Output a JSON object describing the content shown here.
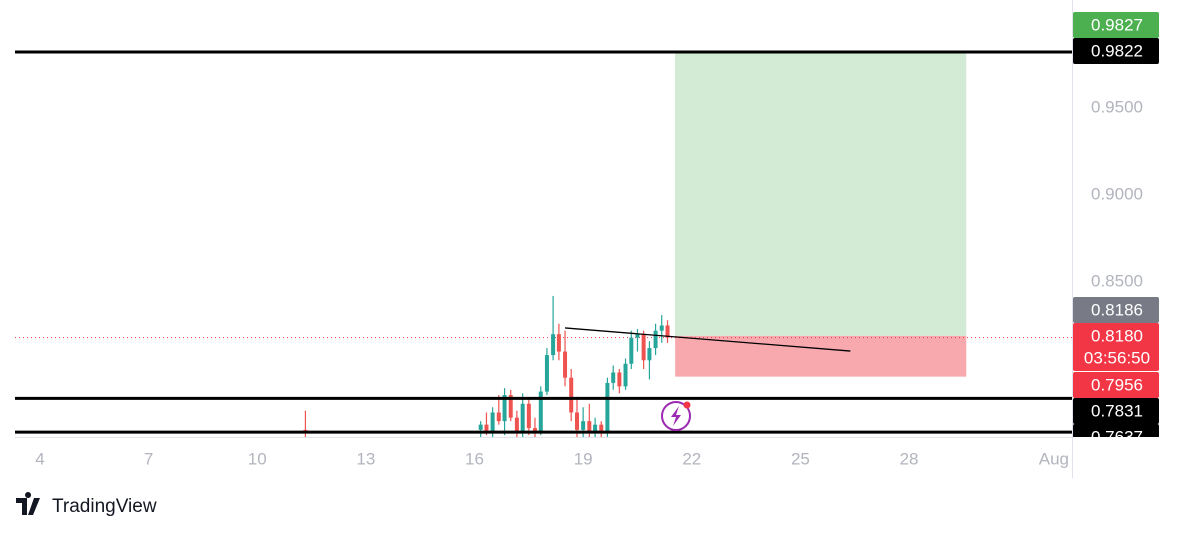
{
  "chart_data": {
    "type": "candlestick",
    "xlim": [
      3.31,
      32.5
    ],
    "xticks": [
      4,
      7,
      10,
      13,
      16,
      19,
      22,
      25,
      28,
      {
        "value": 32,
        "label": "Aug"
      }
    ],
    "ylim": [
      0.7609,
      1.0121
    ],
    "yticks": [
      {
        "value": 0.85,
        "label": "0.8500"
      },
      {
        "value": 0.9,
        "label": "0.9000"
      },
      {
        "value": 0.95,
        "label": "0.9500"
      }
    ],
    "up_color": "#26a69a",
    "down_color": "#ef5350",
    "x": [
      11.33,
      16.17,
      16.33,
      16.5,
      16.67,
      16.83,
      17.0,
      17.17,
      17.33,
      17.5,
      17.67,
      17.83,
      18.0,
      18.17,
      18.33,
      18.5,
      18.67,
      18.83,
      19.0,
      19.17,
      19.33,
      19.5,
      19.67,
      19.83,
      20.0,
      20.17,
      20.33,
      20.5,
      20.67,
      20.83,
      21.0,
      21.17,
      21.33
    ],
    "open": [
      0.765,
      0.765,
      0.768,
      0.764,
      0.775,
      0.77,
      0.785,
      0.772,
      0.763,
      0.78,
      0.766,
      0.763,
      0.787,
      0.808,
      0.82,
      0.81,
      0.795,
      0.775,
      0.765,
      0.77,
      0.764,
      0.768,
      0.763,
      0.792,
      0.798,
      0.79,
      0.803,
      0.818,
      0.82,
      0.805,
      0.812,
      0.822,
      0.825
    ],
    "high": [
      0.776,
      0.77,
      0.775,
      0.778,
      0.785,
      0.789,
      0.788,
      0.776,
      0.786,
      0.783,
      0.772,
      0.79,
      0.812,
      0.842,
      0.826,
      0.822,
      0.8,
      0.784,
      0.778,
      0.78,
      0.772,
      0.77,
      0.795,
      0.802,
      0.8,
      0.806,
      0.822,
      0.823,
      0.822,
      0.816,
      0.826,
      0.831,
      0.828
    ],
    "low": [
      0.76,
      0.76,
      0.762,
      0.76,
      0.768,
      0.762,
      0.77,
      0.76,
      0.76,
      0.762,
      0.76,
      0.762,
      0.785,
      0.805,
      0.805,
      0.79,
      0.77,
      0.76,
      0.76,
      0.76,
      0.76,
      0.76,
      0.761,
      0.788,
      0.786,
      0.788,
      0.8,
      0.81,
      0.8,
      0.794,
      0.808,
      0.815,
      0.815
    ],
    "close": [
      0.763,
      0.768,
      0.764,
      0.775,
      0.77,
      0.785,
      0.772,
      0.763,
      0.78,
      0.766,
      0.763,
      0.787,
      0.808,
      0.82,
      0.81,
      0.795,
      0.775,
      0.765,
      0.77,
      0.764,
      0.768,
      0.763,
      0.792,
      0.798,
      0.79,
      0.803,
      0.818,
      0.82,
      0.805,
      0.812,
      0.822,
      0.825,
      0.818
    ],
    "hlines": [
      0.9822,
      0.7831,
      0.7637
    ],
    "current_price": 0.818,
    "trendline": {
      "x": [
        18.5,
        26.38
      ],
      "y": [
        0.8236,
        0.8103
      ]
    },
    "position": {
      "x": [
        21.54,
        29.58
      ],
      "entry": 0.819,
      "target": 0.9822,
      "stop": 0.7956
    },
    "price_labels": [
      {
        "value": 0.9827,
        "color": "#4caf50"
      },
      {
        "value": 0.9822,
        "color": "#000000"
      },
      {
        "value": 0.8186,
        "color": "#787b86"
      },
      {
        "value": 0.818,
        "label": "0.8180",
        "color": "#f23645"
      },
      {
        "value": 0.7956,
        "color": "#f23645"
      },
      {
        "value": 0.7831,
        "color": "#000000"
      },
      {
        "value": 0.7637,
        "color": "#000000"
      }
    ],
    "countdown": "03:56:50"
  },
  "branding": "TradingView"
}
